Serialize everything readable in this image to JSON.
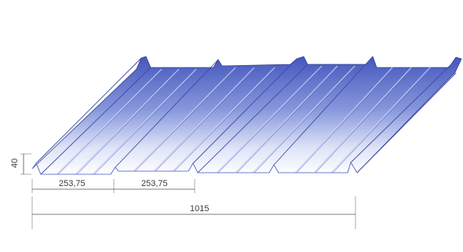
{
  "dimensions": {
    "height_label": "40",
    "pitch_label_1": "253,75",
    "pitch_label_2": "253,75",
    "total_width_label": "1015"
  },
  "colors": {
    "sheet_top": "#4a5cc0",
    "sheet_mid": "#8d9ce0",
    "sheet_bottom": "#ffffff",
    "rib_stroke": "#2e3a8a",
    "dimension_line": "#555555"
  }
}
